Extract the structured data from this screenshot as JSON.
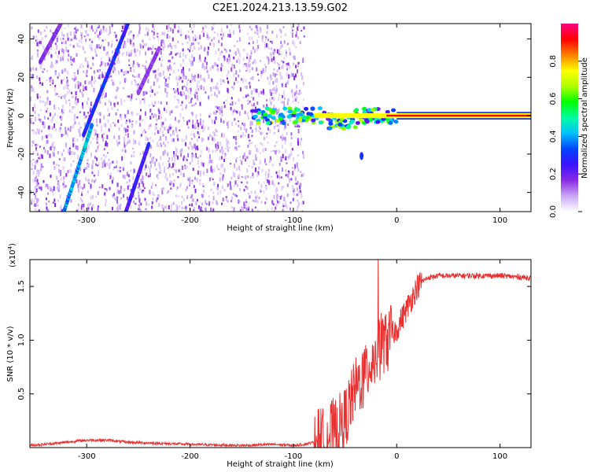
{
  "title": "C2E1.2024.213.13.59.G02",
  "chart_data": [
    {
      "type": "heatmap",
      "title": "C2E1.2024.213.13.59.G02",
      "xlabel": "Height of straight line (km)",
      "ylabel": "Frequency (Hz)",
      "xlim": [
        -355,
        130
      ],
      "ylim": [
        -50,
        48
      ],
      "x_ticks": [
        -300,
        -200,
        -100,
        0,
        100
      ],
      "y_ticks": [
        -40,
        -20,
        0,
        20,
        40
      ],
      "x_tick_labels": [
        "-300",
        "-200",
        "-100",
        "0",
        "100"
      ],
      "y_tick_labels": [
        "-40",
        "-20",
        "0",
        "20",
        "40"
      ],
      "colorbar": {
        "label": "Normalized spectral amplitude",
        "range": [
          0,
          1
        ],
        "ticks": [
          0.0,
          0.2,
          0.4,
          0.6,
          0.8
        ],
        "tick_labels": [
          "0.0",
          "0.2",
          "0.4",
          "0.6",
          "0.8"
        ],
        "colormap": [
          "#ffffff",
          "#c9a6f5",
          "#8a2be2",
          "#3a12ff",
          "#0044ff",
          "#00c0ff",
          "#00ffa0",
          "#00ff00",
          "#b0ff00",
          "#ffff00",
          "#ff8000",
          "#ff0000",
          "#ff0080"
        ]
      },
      "features": {
        "noise_region_x": [
          -355,
          -90
        ],
        "diagonal_tracks": [
          {
            "x_start": -322,
            "y_start": -50,
            "x_end": -295,
            "y_end": -5,
            "peak": 0.5
          },
          {
            "x_start": -303,
            "y_start": -10,
            "x_end": -260,
            "y_end": 48,
            "peak": 0.35
          },
          {
            "x_start": -345,
            "y_start": 28,
            "x_end": -325,
            "y_end": 48,
            "peak": 0.22
          },
          {
            "x_start": -262,
            "y_start": -50,
            "x_end": -240,
            "y_end": -15,
            "peak": 0.3
          },
          {
            "x_start": -250,
            "y_start": 12,
            "x_end": -230,
            "y_end": 35,
            "peak": 0.2
          }
        ],
        "zero_doppler_band": {
          "x_start": -140,
          "x_end": 130,
          "y": 0,
          "peak": 1.0
        },
        "side_blob": {
          "x": -34,
          "y": -21,
          "peak": 0.3
        }
      }
    },
    {
      "type": "line",
      "xlabel": "Height of straight line (km)",
      "ylabel": "SNR (10 * v/v)",
      "multiplier_label": "(x10",
      "multiplier_exp": "4",
      "multiplier_close": ")",
      "xlim": [
        -355,
        130
      ],
      "ylim": [
        0,
        1.75
      ],
      "x_ticks": [
        -300,
        -200,
        -100,
        0,
        100
      ],
      "y_ticks": [
        0.5,
        1.0,
        1.5
      ],
      "x_tick_labels": [
        "-300",
        "-200",
        "-100",
        "0",
        "100"
      ],
      "y_tick_labels": [
        "0.5",
        "1.0",
        "1.5"
      ],
      "color": "#e83030",
      "series_shape": {
        "x": [
          -355,
          -330,
          -300,
          -280,
          -260,
          -200,
          -150,
          -120,
          -100,
          -90,
          -80,
          -70,
          -60,
          -50,
          -45,
          -40,
          -35,
          -30,
          -25,
          -20,
          -15,
          -10,
          -5,
          0,
          5,
          10,
          15,
          20,
          25,
          30,
          40,
          60,
          80,
          100,
          130
        ],
        "y": [
          0.02,
          0.04,
          0.07,
          0.07,
          0.05,
          0.03,
          0.02,
          0.03,
          0.02,
          0.03,
          0.05,
          0.1,
          0.15,
          0.25,
          0.4,
          0.55,
          0.62,
          0.7,
          0.8,
          0.9,
          0.95,
          1.0,
          1.05,
          1.1,
          1.2,
          1.3,
          1.4,
          1.5,
          1.55,
          1.58,
          1.6,
          1.6,
          1.6,
          1.6,
          1.58
        ]
      }
    }
  ]
}
